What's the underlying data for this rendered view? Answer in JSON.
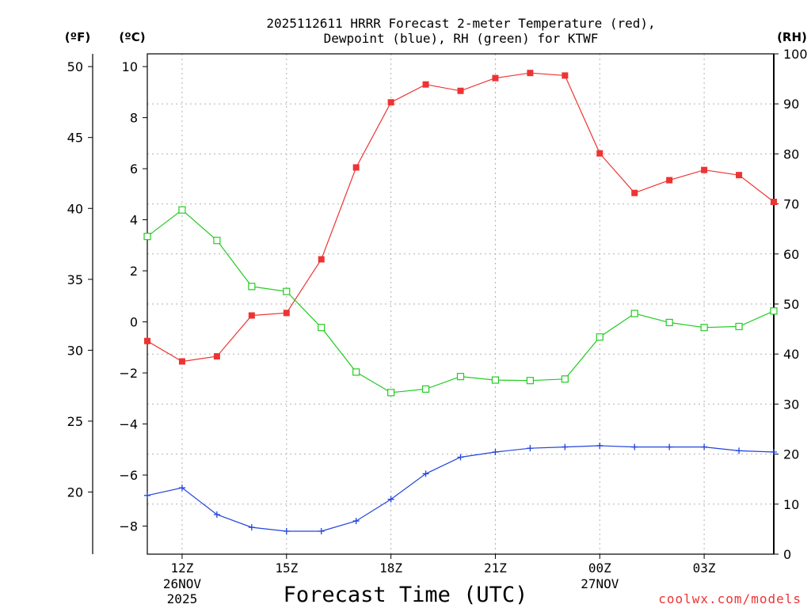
{
  "chart_data": {
    "type": "line",
    "title_line1": "2025112611 HRRR Forecast 2-meter Temperature (red),",
    "title_line2": "Dewpoint (blue), RH (green) for KTWF",
    "xlabel": "Forecast Time (UTC)",
    "watermark": "coolwx.com/models",
    "axis_units": {
      "fahrenheit": "(ºF)",
      "celsius": "(ºC)",
      "rh": "(RH)"
    },
    "x_range": [
      11,
      29
    ],
    "y_celsius_range": [
      -9.1,
      10.5
    ],
    "y_rh_range": [
      0,
      100
    ],
    "x_ticks": [
      {
        "x": 12,
        "label": "12Z",
        "sub1": "26NOV",
        "sub2": "2025"
      },
      {
        "x": 15,
        "label": "15Z",
        "sub1": "",
        "sub2": ""
      },
      {
        "x": 18,
        "label": "18Z",
        "sub1": "",
        "sub2": ""
      },
      {
        "x": 21,
        "label": "21Z",
        "sub1": "",
        "sub2": ""
      },
      {
        "x": 24,
        "label": "00Z",
        "sub1": "27NOV",
        "sub2": ""
      },
      {
        "x": 27,
        "label": "03Z",
        "sub1": "",
        "sub2": ""
      }
    ],
    "celsius_ticks": [
      10,
      8,
      6,
      4,
      2,
      0,
      -2,
      -4,
      -6,
      -8
    ],
    "celsius_tick_labels": [
      "10",
      "8",
      "6",
      "4",
      "2",
      "0",
      "−2",
      "−4",
      "−6",
      "−8"
    ],
    "fahrenheit_ticks": [
      50,
      45,
      40,
      35,
      30,
      25,
      20
    ],
    "rh_ticks": [
      100,
      90,
      80,
      70,
      60,
      50,
      40,
      30,
      20,
      10,
      0
    ],
    "series": [
      {
        "name": "Temperature",
        "color": "#ee3333",
        "unit": "C",
        "marker": "filled-square",
        "x": [
          11,
          12,
          13,
          14,
          15,
          16,
          17,
          18,
          19,
          20,
          21,
          22,
          23,
          24,
          25,
          26,
          27,
          28,
          29
        ],
        "values": [
          -0.75,
          -1.55,
          -1.35,
          0.25,
          0.35,
          2.45,
          6.05,
          8.6,
          9.3,
          9.05,
          9.55,
          9.75,
          9.65,
          6.6,
          5.05,
          5.55,
          5.95,
          5.75,
          4.7
        ]
      },
      {
        "name": "Dewpoint",
        "color": "#2244dd",
        "unit": "C",
        "marker": "plus",
        "x": [
          11,
          12,
          13,
          14,
          15,
          16,
          17,
          18,
          19,
          20,
          21,
          22,
          23,
          24,
          25,
          26,
          27,
          28,
          29
        ],
        "values": [
          -6.8,
          -6.5,
          -7.55,
          -8.05,
          -8.2,
          -8.2,
          -7.8,
          -6.95,
          -5.95,
          -5.3,
          -5.1,
          -4.95,
          -4.9,
          -4.85,
          -4.9,
          -4.9,
          -4.9,
          -5.05,
          -5.1
        ]
      },
      {
        "name": "RH",
        "color": "#22cc22",
        "unit": "%",
        "marker": "open-square",
        "x": [
          11,
          12,
          13,
          14,
          15,
          16,
          17,
          18,
          19,
          20,
          21,
          22,
          23,
          24,
          25,
          26,
          27,
          28,
          29
        ],
        "values": [
          63.5,
          68.8,
          62.7,
          53.5,
          52.5,
          45.3,
          36.4,
          32.3,
          33.0,
          35.5,
          34.8,
          34.7,
          35.0,
          43.4,
          48.1,
          46.3,
          45.3,
          45.5,
          48.6
        ]
      }
    ],
    "grid": true,
    "legend": "none (series named in title)"
  }
}
